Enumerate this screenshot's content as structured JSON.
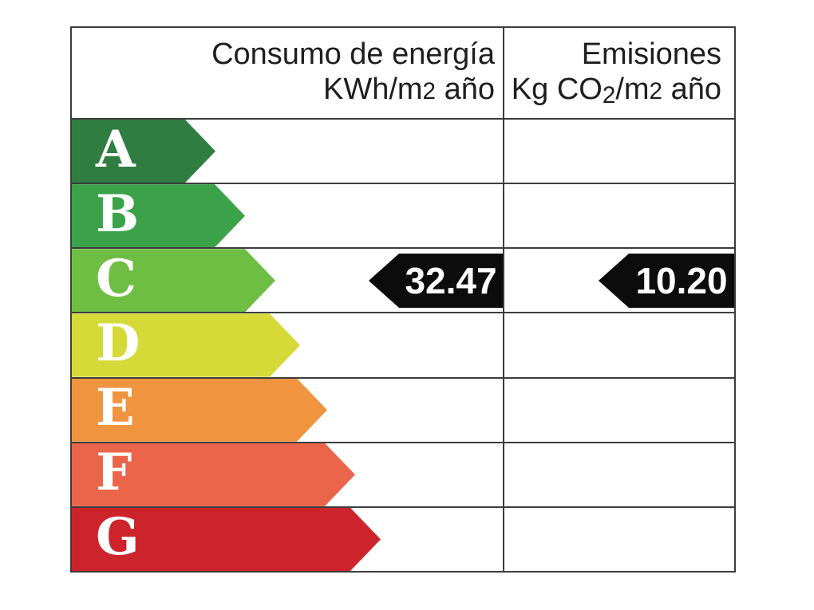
{
  "header": {
    "consumo": {
      "line1": "Consumo de energía",
      "unit_pre": "KWh/m",
      "unit_exp": "2",
      "unit_post": " año"
    },
    "emisiones": {
      "line1": "Emisiones",
      "unit_pre": "Kg CO",
      "unit_sub": "2",
      "unit_mid": "/m",
      "unit_exp": "2",
      "unit_post": " año"
    }
  },
  "scale": {
    "rows": [
      {
        "letter": "A",
        "color": "#2f7d41",
        "arrow_length": 180
      },
      {
        "letter": "B",
        "color": "#3ba24a",
        "arrow_length": 217
      },
      {
        "letter": "C",
        "color": "#6fbe44",
        "arrow_length": 255
      },
      {
        "letter": "D",
        "color": "#d5da39",
        "arrow_length": 286
      },
      {
        "letter": "E",
        "color": "#f09440",
        "arrow_length": 320
      },
      {
        "letter": "F",
        "color": "#ea654a",
        "arrow_length": 355
      },
      {
        "letter": "G",
        "color": "#cd242c",
        "arrow_length": 387
      }
    ]
  },
  "values": {
    "rating": "C",
    "consumo": "32.47",
    "emisiones": "10.20",
    "marker_color": "#0c0c0c"
  },
  "colors": {
    "border": "#3d3d3d",
    "background": "#ffffff",
    "header_text": "#1e1e1e"
  },
  "chart_data": {
    "type": "table",
    "columns": [
      "Consumo de energía KWh/m2 año",
      "Emisiones Kg CO2/m2 año"
    ],
    "categories": [
      "A",
      "B",
      "C",
      "D",
      "E",
      "F",
      "G"
    ],
    "category_colors": [
      "#2f7d41",
      "#3ba24a",
      "#6fbe44",
      "#d5da39",
      "#f09440",
      "#ea654a",
      "#cd242c"
    ],
    "rating": "C",
    "values": {
      "consumo_energia_kwh_m2_ano": 32.47,
      "emisiones_kg_co2_m2_ano": 10.2
    },
    "legend_position": "none",
    "grid": true
  }
}
